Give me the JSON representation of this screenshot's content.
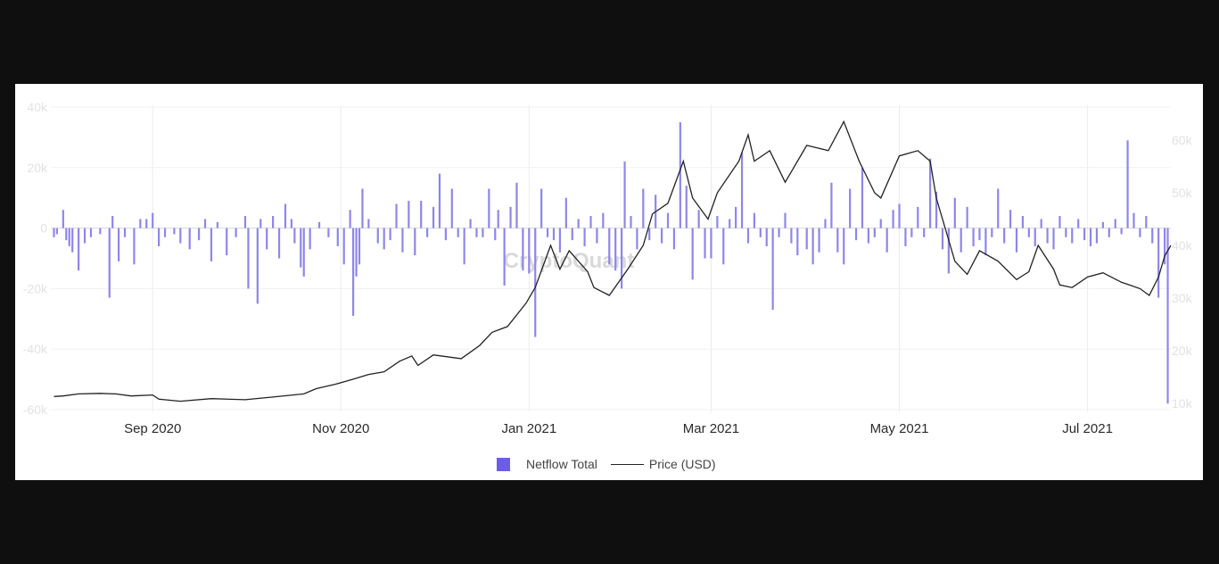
{
  "chart_data": {
    "type": "bar+line",
    "watermark": "CryptoQuant",
    "legend": {
      "placement": "bottom-center"
    },
    "grid": true,
    "y_left": {
      "ticks": [
        "40k",
        "20k",
        "0",
        "-20k",
        "-40k",
        "-60k"
      ],
      "tick_values": [
        40000,
        20000,
        0,
        -20000,
        -40000,
        -60000
      ],
      "range": [
        -60000,
        40000
      ]
    },
    "y_right": {
      "ticks": [
        "60k",
        "50k",
        "40k",
        "30k",
        "20k",
        "10k"
      ],
      "tick_values": [
        60000,
        50000,
        40000,
        30000,
        20000,
        10000
      ],
      "range": [
        7000,
        65000
      ]
    },
    "x_ticks": [
      {
        "label": "Sep 2020",
        "date": "2020-09-01"
      },
      {
        "label": "Nov 2020",
        "date": "2020-11-01"
      },
      {
        "label": "Jan 2021",
        "date": "2021-01-01"
      },
      {
        "label": "Mar 2021",
        "date": "2021-03-01"
      },
      {
        "label": "May 2021",
        "date": "2021-05-01"
      },
      {
        "label": "Jul 2021",
        "date": "2021-07-01"
      }
    ],
    "x_range": [
      "2020-07-30",
      "2021-07-28"
    ],
    "series": [
      {
        "name": "Netflow Total",
        "kind": "bar",
        "color": "#8e86ea",
        "points": [
          [
            "2020-07-31",
            -3000
          ],
          [
            "2020-08-01",
            -2000
          ],
          [
            "2020-08-03",
            6000
          ],
          [
            "2020-08-04",
            -4000
          ],
          [
            "2020-08-05",
            -6000
          ],
          [
            "2020-08-06",
            -8000
          ],
          [
            "2020-08-08",
            -14000
          ],
          [
            "2020-08-10",
            -5000
          ],
          [
            "2020-08-12",
            -3000
          ],
          [
            "2020-08-15",
            -2000
          ],
          [
            "2020-08-18",
            -23000
          ],
          [
            "2020-08-19",
            4000
          ],
          [
            "2020-08-21",
            -11000
          ],
          [
            "2020-08-23",
            -3000
          ],
          [
            "2020-08-26",
            -12000
          ],
          [
            "2020-08-28",
            3000
          ],
          [
            "2020-08-30",
            3000
          ],
          [
            "2020-09-01",
            5000
          ],
          [
            "2020-09-03",
            -6000
          ],
          [
            "2020-09-05",
            -3000
          ],
          [
            "2020-09-08",
            -2000
          ],
          [
            "2020-09-10",
            -5000
          ],
          [
            "2020-09-13",
            -7000
          ],
          [
            "2020-09-16",
            -4000
          ],
          [
            "2020-09-18",
            3000
          ],
          [
            "2020-09-20",
            -11000
          ],
          [
            "2020-09-22",
            2000
          ],
          [
            "2020-09-25",
            -9000
          ],
          [
            "2020-09-28",
            -3000
          ],
          [
            "2020-10-01",
            4000
          ],
          [
            "2020-10-02",
            -20000
          ],
          [
            "2020-10-05",
            -25000
          ],
          [
            "2020-10-06",
            3000
          ],
          [
            "2020-10-08",
            -7000
          ],
          [
            "2020-10-10",
            4000
          ],
          [
            "2020-10-12",
            -10000
          ],
          [
            "2020-10-14",
            8000
          ],
          [
            "2020-10-16",
            3000
          ],
          [
            "2020-10-17",
            -5000
          ],
          [
            "2020-10-19",
            -13000
          ],
          [
            "2020-10-20",
            -16000
          ],
          [
            "2020-10-22",
            -7000
          ],
          [
            "2020-10-25",
            2000
          ],
          [
            "2020-10-28",
            -3000
          ],
          [
            "2020-10-31",
            -6000
          ],
          [
            "2020-11-02",
            -12000
          ],
          [
            "2020-11-04",
            6000
          ],
          [
            "2020-11-05",
            -29000
          ],
          [
            "2020-11-06",
            -16000
          ],
          [
            "2020-11-07",
            -12000
          ],
          [
            "2020-11-08",
            13000
          ],
          [
            "2020-11-10",
            3000
          ],
          [
            "2020-11-13",
            -5000
          ],
          [
            "2020-11-15",
            -7000
          ],
          [
            "2020-11-17",
            -4000
          ],
          [
            "2020-11-19",
            8000
          ],
          [
            "2020-11-21",
            -8000
          ],
          [
            "2020-11-23",
            9000
          ],
          [
            "2020-11-25",
            -9000
          ],
          [
            "2020-11-27",
            9000
          ],
          [
            "2020-11-29",
            -3000
          ],
          [
            "2020-12-01",
            7000
          ],
          [
            "2020-12-03",
            18000
          ],
          [
            "2020-12-05",
            -4000
          ],
          [
            "2020-12-07",
            13000
          ],
          [
            "2020-12-09",
            -3000
          ],
          [
            "2020-12-11",
            -12000
          ],
          [
            "2020-12-13",
            3000
          ],
          [
            "2020-12-15",
            -3000
          ],
          [
            "2020-12-17",
            -3000
          ],
          [
            "2020-12-19",
            13000
          ],
          [
            "2020-12-21",
            -4000
          ],
          [
            "2020-12-22",
            6000
          ],
          [
            "2020-12-24",
            -19000
          ],
          [
            "2020-12-26",
            7000
          ],
          [
            "2020-12-28",
            15000
          ],
          [
            "2020-12-30",
            -14000
          ],
          [
            "2021-01-01",
            -15000
          ],
          [
            "2021-01-03",
            -36000
          ],
          [
            "2021-01-05",
            13000
          ],
          [
            "2021-01-07",
            -3000
          ],
          [
            "2021-01-09",
            -4000
          ],
          [
            "2021-01-11",
            -8000
          ],
          [
            "2021-01-13",
            10000
          ],
          [
            "2021-01-15",
            -4000
          ],
          [
            "2021-01-17",
            3000
          ],
          [
            "2021-01-19",
            -6000
          ],
          [
            "2021-01-21",
            4000
          ],
          [
            "2021-01-23",
            -5000
          ],
          [
            "2021-01-25",
            5000
          ],
          [
            "2021-01-27",
            -12000
          ],
          [
            "2021-01-29",
            -14000
          ],
          [
            "2021-01-31",
            -20000
          ],
          [
            "2021-02-01",
            22000
          ],
          [
            "2021-02-03",
            4000
          ],
          [
            "2021-02-05",
            -7000
          ],
          [
            "2021-02-07",
            13000
          ],
          [
            "2021-02-09",
            -4000
          ],
          [
            "2021-02-11",
            11000
          ],
          [
            "2021-02-13",
            -5000
          ],
          [
            "2021-02-15",
            5000
          ],
          [
            "2021-02-17",
            -7000
          ],
          [
            "2021-02-19",
            35000
          ],
          [
            "2021-02-21",
            14000
          ],
          [
            "2021-02-23",
            -17000
          ],
          [
            "2021-02-25",
            6000
          ],
          [
            "2021-02-27",
            -10000
          ],
          [
            "2021-03-01",
            -10000
          ],
          [
            "2021-03-03",
            4000
          ],
          [
            "2021-03-05",
            -12000
          ],
          [
            "2021-03-07",
            3000
          ],
          [
            "2021-03-09",
            7000
          ],
          [
            "2021-03-11",
            25000
          ],
          [
            "2021-03-13",
            -5000
          ],
          [
            "2021-03-15",
            5000
          ],
          [
            "2021-03-17",
            -3000
          ],
          [
            "2021-03-19",
            -6000
          ],
          [
            "2021-03-21",
            -27000
          ],
          [
            "2021-03-23",
            -3000
          ],
          [
            "2021-03-25",
            5000
          ],
          [
            "2021-03-27",
            -5000
          ],
          [
            "2021-03-29",
            -9000
          ],
          [
            "2021-04-01",
            -7000
          ],
          [
            "2021-04-03",
            -12000
          ],
          [
            "2021-04-05",
            -8000
          ],
          [
            "2021-04-07",
            3000
          ],
          [
            "2021-04-09",
            15000
          ],
          [
            "2021-04-11",
            -8000
          ],
          [
            "2021-04-13",
            -12000
          ],
          [
            "2021-04-15",
            13000
          ],
          [
            "2021-04-17",
            -4000
          ],
          [
            "2021-04-19",
            20000
          ],
          [
            "2021-04-21",
            -5000
          ],
          [
            "2021-04-23",
            -3000
          ],
          [
            "2021-04-25",
            3000
          ],
          [
            "2021-04-27",
            -8000
          ],
          [
            "2021-04-29",
            6000
          ],
          [
            "2021-05-01",
            8000
          ],
          [
            "2021-05-03",
            -6000
          ],
          [
            "2021-05-05",
            -3000
          ],
          [
            "2021-05-07",
            7000
          ],
          [
            "2021-05-09",
            -3000
          ],
          [
            "2021-05-11",
            23000
          ],
          [
            "2021-05-13",
            12000
          ],
          [
            "2021-05-15",
            -7000
          ],
          [
            "2021-05-17",
            -15000
          ],
          [
            "2021-05-19",
            10000
          ],
          [
            "2021-05-21",
            -8000
          ],
          [
            "2021-05-23",
            7000
          ],
          [
            "2021-05-25",
            -6000
          ],
          [
            "2021-05-27",
            -4000
          ],
          [
            "2021-05-29",
            -9000
          ],
          [
            "2021-05-31",
            -3000
          ],
          [
            "2021-06-02",
            13000
          ],
          [
            "2021-06-04",
            -5000
          ],
          [
            "2021-06-06",
            6000
          ],
          [
            "2021-06-08",
            -8000
          ],
          [
            "2021-06-10",
            4000
          ],
          [
            "2021-06-12",
            -3000
          ],
          [
            "2021-06-14",
            -6000
          ],
          [
            "2021-06-16",
            3000
          ],
          [
            "2021-06-18",
            -5000
          ],
          [
            "2021-06-20",
            -7000
          ],
          [
            "2021-06-22",
            4000
          ],
          [
            "2021-06-24",
            -3000
          ],
          [
            "2021-06-26",
            -5000
          ],
          [
            "2021-06-28",
            3000
          ],
          [
            "2021-06-30",
            -4000
          ],
          [
            "2021-07-02",
            -6000
          ],
          [
            "2021-07-04",
            -5000
          ],
          [
            "2021-07-06",
            2000
          ],
          [
            "2021-07-08",
            -3000
          ],
          [
            "2021-07-10",
            3000
          ],
          [
            "2021-07-12",
            -2000
          ],
          [
            "2021-07-14",
            29000
          ],
          [
            "2021-07-16",
            5000
          ],
          [
            "2021-07-18",
            -3000
          ],
          [
            "2021-07-20",
            4000
          ],
          [
            "2021-07-22",
            -5000
          ],
          [
            "2021-07-24",
            -23000
          ],
          [
            "2021-07-26",
            -12000
          ],
          [
            "2021-07-27",
            -58000
          ]
        ]
      },
      {
        "name": "Price (USD)",
        "kind": "line",
        "axis": "right",
        "color": "#222222",
        "points": [
          [
            "2020-07-31",
            11300
          ],
          [
            "2020-08-03",
            11400
          ],
          [
            "2020-08-08",
            11800
          ],
          [
            "2020-08-15",
            11900
          ],
          [
            "2020-08-20",
            11800
          ],
          [
            "2020-08-25",
            11400
          ],
          [
            "2020-09-01",
            11600
          ],
          [
            "2020-09-03",
            10800
          ],
          [
            "2020-09-10",
            10400
          ],
          [
            "2020-09-20",
            10900
          ],
          [
            "2020-10-01",
            10700
          ],
          [
            "2020-10-10",
            11200
          ],
          [
            "2020-10-20",
            11800
          ],
          [
            "2020-10-24",
            12800
          ],
          [
            "2020-10-30",
            13600
          ],
          [
            "2020-11-05",
            14600
          ],
          [
            "2020-11-10",
            15500
          ],
          [
            "2020-11-15",
            16000
          ],
          [
            "2020-11-20",
            18000
          ],
          [
            "2020-11-24",
            19000
          ],
          [
            "2020-11-26",
            17200
          ],
          [
            "2020-12-01",
            19200
          ],
          [
            "2020-12-10",
            18500
          ],
          [
            "2020-12-16",
            21000
          ],
          [
            "2020-12-20",
            23500
          ],
          [
            "2020-12-25",
            24600
          ],
          [
            "2020-12-31",
            29000
          ],
          [
            "2021-01-03",
            32000
          ],
          [
            "2021-01-08",
            40000
          ],
          [
            "2021-01-11",
            35500
          ],
          [
            "2021-01-14",
            39000
          ],
          [
            "2021-01-20",
            35000
          ],
          [
            "2021-01-22",
            32000
          ],
          [
            "2021-01-27",
            30500
          ],
          [
            "2021-02-02",
            35500
          ],
          [
            "2021-02-07",
            40000
          ],
          [
            "2021-02-10",
            46000
          ],
          [
            "2021-02-15",
            48000
          ],
          [
            "2021-02-20",
            56000
          ],
          [
            "2021-02-23",
            49000
          ],
          [
            "2021-02-28",
            45000
          ],
          [
            "2021-03-03",
            50000
          ],
          [
            "2021-03-10",
            56000
          ],
          [
            "2021-03-13",
            61000
          ],
          [
            "2021-03-15",
            56000
          ],
          [
            "2021-03-20",
            58000
          ],
          [
            "2021-03-25",
            52000
          ],
          [
            "2021-04-01",
            59000
          ],
          [
            "2021-04-08",
            58000
          ],
          [
            "2021-04-13",
            63500
          ],
          [
            "2021-04-18",
            56000
          ],
          [
            "2021-04-23",
            50000
          ],
          [
            "2021-04-25",
            49000
          ],
          [
            "2021-05-01",
            57000
          ],
          [
            "2021-05-07",
            58000
          ],
          [
            "2021-05-11",
            56000
          ],
          [
            "2021-05-13",
            49000
          ],
          [
            "2021-05-19",
            37000
          ],
          [
            "2021-05-23",
            34500
          ],
          [
            "2021-05-27",
            39000
          ],
          [
            "2021-06-02",
            37000
          ],
          [
            "2021-06-08",
            33500
          ],
          [
            "2021-06-12",
            35000
          ],
          [
            "2021-06-15",
            40000
          ],
          [
            "2021-06-20",
            35500
          ],
          [
            "2021-06-22",
            32500
          ],
          [
            "2021-06-26",
            32000
          ],
          [
            "2021-07-01",
            34000
          ],
          [
            "2021-07-06",
            34800
          ],
          [
            "2021-07-12",
            33000
          ],
          [
            "2021-07-18",
            31800
          ],
          [
            "2021-07-21",
            30500
          ],
          [
            "2021-07-24",
            34000
          ],
          [
            "2021-07-26",
            38000
          ],
          [
            "2021-07-28",
            40000
          ]
        ]
      }
    ]
  }
}
